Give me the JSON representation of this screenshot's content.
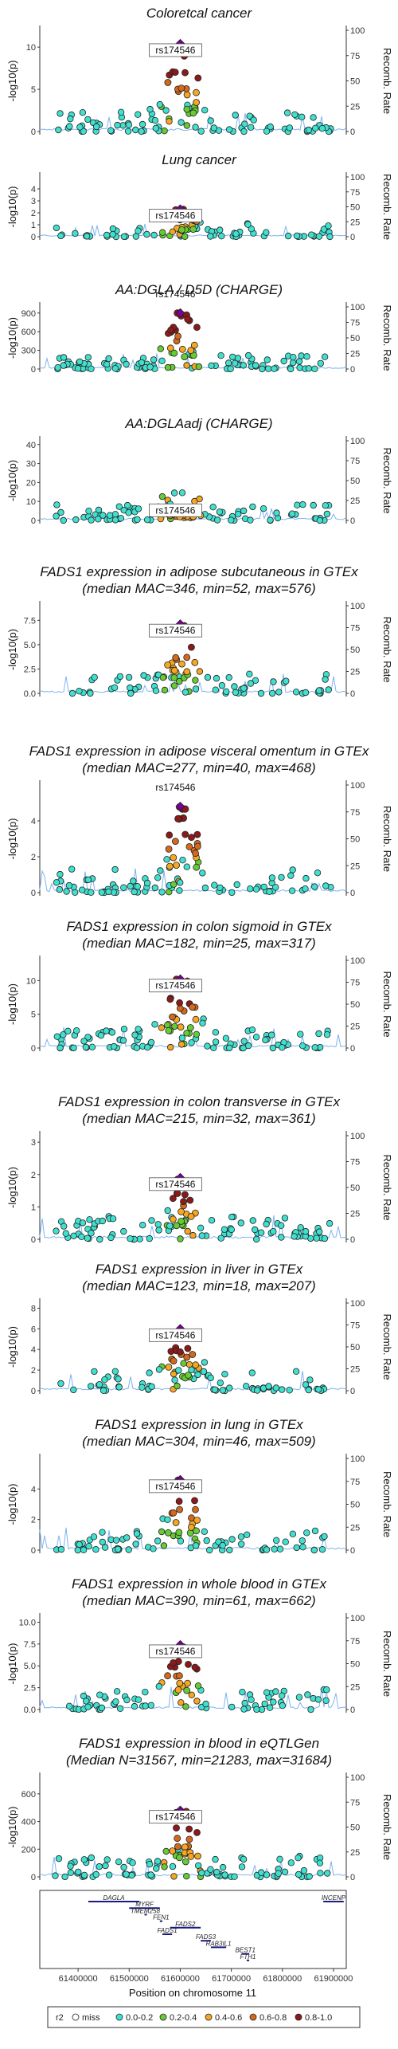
{
  "chart_data": {
    "type": "scatter",
    "lead_variant": "rs174546",
    "right_axis_label": "Recomb. Rate",
    "right_ticks": [
      "0",
      "25",
      "50",
      "75",
      "100"
    ],
    "x_axis": {
      "label": "Position on chromosome 11",
      "ticks": [
        "61400000",
        "61500000",
        "61600000",
        "61700000",
        "61800000",
        "61900000"
      ],
      "range": [
        61325000,
        61925000
      ]
    },
    "legend": {
      "title": "r2",
      "items": [
        {
          "label": "miss",
          "color": "#ffffff"
        },
        {
          "label": "0.0-0.2",
          "color": "#40e0d0"
        },
        {
          "label": "0.2-0.4",
          "color": "#66cc33"
        },
        {
          "label": "0.4-0.6",
          "color": "#f5a623"
        },
        {
          "label": "0.6-0.8",
          "color": "#d2691e"
        },
        {
          "label": "0.8-1.0",
          "color": "#8b1a1a"
        }
      ]
    },
    "lead_color": "#7a0099",
    "panels": [
      {
        "title_lines": [
          "Coloretcal cancer"
        ],
        "ylabel": "-log10(p)",
        "ymax": 12,
        "yticks": [
          "0",
          "5",
          "10"
        ],
        "ytick_values": [
          0,
          5,
          10
        ],
        "lead_y": 10.4,
        "label_pos": "below"
      },
      {
        "title_lines": [
          "Lung cancer"
        ],
        "ylabel": "-log10(p)",
        "ymax": 5,
        "yticks": [
          "0",
          "1",
          "2",
          "3",
          "4"
        ],
        "ytick_values": [
          0,
          1,
          2,
          3,
          4
        ],
        "lead_y": 2.3,
        "label_pos": "below"
      },
      {
        "title_lines": [
          "AA:DGLA / D5D (CHARGE)"
        ],
        "ylabel": "-log10(p)",
        "ymax": 1000,
        "yticks": [
          "0",
          "300",
          "600",
          "900"
        ],
        "ytick_values": [
          0,
          300,
          600,
          900
        ],
        "lead_y": 900,
        "label_pos": "above"
      },
      {
        "title_lines": [
          "AA:DGLAadj (CHARGE)"
        ],
        "ylabel": "-log10(p)",
        "ymax": 42,
        "yticks": [
          "0",
          "10",
          "20",
          "30",
          "40"
        ],
        "ytick_values": [
          0,
          10,
          20,
          30,
          40
        ],
        "lead_y": 4.5,
        "label_pos": "box"
      },
      {
        "title_lines": [
          "FADS1 expression in adipose subcutaneous in GTEx",
          "(median MAC=346, min=52, max=576)"
        ],
        "ylabel": "-log10(p)",
        "ymax": 9,
        "yticks": [
          "0.0",
          "2.5",
          "5.0",
          "7.5"
        ],
        "ytick_values": [
          0,
          2.5,
          5,
          7.5
        ],
        "lead_y": 7.1,
        "label_pos": "below"
      },
      {
        "title_lines": [
          "FADS1 expression in adipose visceral omentum in GTEx",
          "(median MAC=277, min=40, max=468)"
        ],
        "ylabel": "-log10(p)",
        "ymax": 6,
        "yticks": [
          "0",
          "2",
          "4"
        ],
        "ytick_values": [
          0,
          2,
          4
        ],
        "lead_y": 4.8,
        "label_pos": "above"
      },
      {
        "title_lines": [
          "FADS1 expression in colon sigmoid in GTEx",
          "(median MAC=182, min=25, max=317)"
        ],
        "ylabel": "-log10(p)",
        "ymax": 13,
        "yticks": [
          "0",
          "5",
          "10"
        ],
        "ytick_values": [
          0,
          5,
          10
        ],
        "lead_y": 10.2,
        "label_pos": "below"
      },
      {
        "title_lines": [
          "FADS1 expression in colon transverse in GTEx",
          "(median MAC=215, min=32, max=361)"
        ],
        "ylabel": "-log10(p)",
        "ymax": 3.2,
        "yticks": [
          "0",
          "1",
          "2",
          "3"
        ],
        "ytick_values": [
          0,
          1,
          2,
          3
        ],
        "lead_y": 1.9,
        "label_pos": "below"
      },
      {
        "title_lines": [
          "FADS1 expression in liver in GTEx",
          "(median MAC=123, min=18, max=207)"
        ],
        "ylabel": "-log10(p)",
        "ymax": 8.5,
        "yticks": [
          "0",
          "2",
          "4",
          "6",
          "8"
        ],
        "ytick_values": [
          0,
          2,
          4,
          6,
          8
        ],
        "lead_y": 6.0,
        "label_pos": "below"
      },
      {
        "title_lines": [
          "FADS1 expression in lung in GTEx",
          "(median MAC=304, min=46, max=509)"
        ],
        "ylabel": "-log10(p)",
        "ymax": 6,
        "yticks": [
          "0",
          "2",
          "4"
        ],
        "ytick_values": [
          0,
          2,
          4
        ],
        "lead_y": 4.6,
        "label_pos": "below"
      },
      {
        "title_lines": [
          "FADS1 expression in whole blood in GTEx",
          "(median MAC=390, min=61, max=662)"
        ],
        "ylabel": "-log10(p)",
        "ymax": 10.5,
        "yticks": [
          "0.0",
          "2.5",
          "5.0",
          "7.5",
          "10.0"
        ],
        "ytick_values": [
          0,
          2.5,
          5,
          7.5,
          10
        ],
        "lead_y": 7.4,
        "label_pos": "below"
      },
      {
        "title_lines": [
          "FADS1 expression in blood in eQTLGen",
          "(Median N=31567, min=21283, max=31684)"
        ],
        "ylabel": "-log10(p)",
        "ymax": 720,
        "yticks": [
          "0",
          "200",
          "400",
          "600"
        ],
        "ytick_values": [
          0,
          200,
          400,
          600
        ],
        "lead_y": 480,
        "label_pos": "below"
      }
    ],
    "genes": [
      {
        "name": "DAGLA",
        "start": 61420000,
        "end": 61520000,
        "row": 0
      },
      {
        "name": "INCENP",
        "start": 61880000,
        "end": 61920000,
        "row": 0
      },
      {
        "name": "MYRF",
        "start": 61500000,
        "end": 61560000,
        "row": 1
      },
      {
        "name": "TMEM258",
        "start": 61530000,
        "end": 61533000,
        "row": 2
      },
      {
        "name": "FEN1",
        "start": 61560000,
        "end": 61565000,
        "row": 3
      },
      {
        "name": "FADS2",
        "start": 61580000,
        "end": 61640000,
        "row": 4
      },
      {
        "name": "FADS1",
        "start": 61565000,
        "end": 61584000,
        "row": 5
      },
      {
        "name": "FADS3",
        "start": 61640000,
        "end": 61660000,
        "row": 6
      },
      {
        "name": "RAB3IL1",
        "start": 61660000,
        "end": 61690000,
        "row": 7
      },
      {
        "name": "BEST1",
        "start": 61720000,
        "end": 61735000,
        "row": 8
      },
      {
        "name": "FTH1",
        "start": 61730000,
        "end": 61735000,
        "row": 9
      }
    ]
  }
}
